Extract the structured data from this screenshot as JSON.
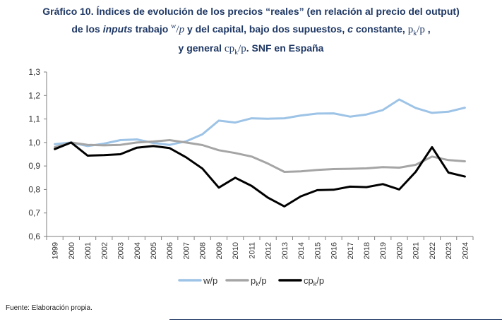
{
  "title": {
    "line1": "Gráfico 10. Índices de evolución de los precios “reales” (en relación al precio del output)",
    "line2a": "de los",
    "line2b": "inputs",
    "line2c": "trabajo",
    "frac_w_num": "w",
    "frac_w_den": "p",
    "line2d": "y del capital, bajo dos supuestos,",
    "line2e": "c",
    "line2f": "constante,",
    "frac_pk_num": "p",
    "frac_pk_sub": "k",
    "frac_pk_den": "p",
    "line3a": "y general",
    "frac_cpk_num": "cp",
    "frac_cpk_sub": "k",
    "frac_cpk_den": "p",
    "line3b": ". SNF en España"
  },
  "source": "Fuente: Elaboración propia.",
  "chart_data": {
    "type": "line",
    "x": [
      "1999",
      "2000",
      "2001",
      "2002",
      "2003",
      "2004",
      "2005",
      "2006",
      "2007",
      "2008",
      "2009",
      "2010",
      "2011",
      "2012",
      "2013",
      "2014",
      "2015",
      "2016",
      "2017",
      "2018",
      "2019",
      "2020",
      "2021",
      "2022",
      "2023",
      "2024"
    ],
    "ylim": [
      0.6,
      1.3
    ],
    "yticks": [
      "0,6",
      "0,7",
      "0,8",
      "0,9",
      "1,0",
      "1,1",
      "1,2",
      "1,3"
    ],
    "grid": false,
    "legend": "bottom",
    "series": [
      {
        "name": "w/p",
        "legend_main": "w/p",
        "legend_sub": "",
        "legend_tail": "",
        "color": "#9dc3e6",
        "values": [
          0.993,
          1.0,
          0.985,
          0.995,
          1.01,
          1.013,
          0.998,
          0.99,
          1.005,
          1.035,
          1.093,
          1.085,
          1.103,
          1.101,
          1.103,
          1.115,
          1.123,
          1.124,
          1.11,
          1.119,
          1.138,
          1.183,
          1.147,
          1.126,
          1.131,
          1.148
        ]
      },
      {
        "name": "pk/p",
        "legend_main": "p",
        "legend_sub": "k",
        "legend_tail": "/p",
        "color": "#a5a5a5",
        "values": [
          0.98,
          1.0,
          0.99,
          0.988,
          0.99,
          1.0,
          1.004,
          1.01,
          1.0,
          0.989,
          0.967,
          0.955,
          0.94,
          0.91,
          0.875,
          0.877,
          0.883,
          0.887,
          0.888,
          0.89,
          0.895,
          0.893,
          0.905,
          0.94,
          0.925,
          0.92
        ]
      },
      {
        "name": "cpk/p",
        "legend_main": "cp",
        "legend_sub": "k",
        "legend_tail": "/p",
        "color": "#000000",
        "values": [
          0.972,
          1.0,
          0.944,
          0.946,
          0.95,
          0.978,
          0.985,
          0.976,
          0.937,
          0.889,
          0.808,
          0.85,
          0.815,
          0.765,
          0.728,
          0.771,
          0.797,
          0.799,
          0.812,
          0.81,
          0.823,
          0.8,
          0.875,
          0.98,
          0.872,
          0.855
        ]
      }
    ]
  }
}
